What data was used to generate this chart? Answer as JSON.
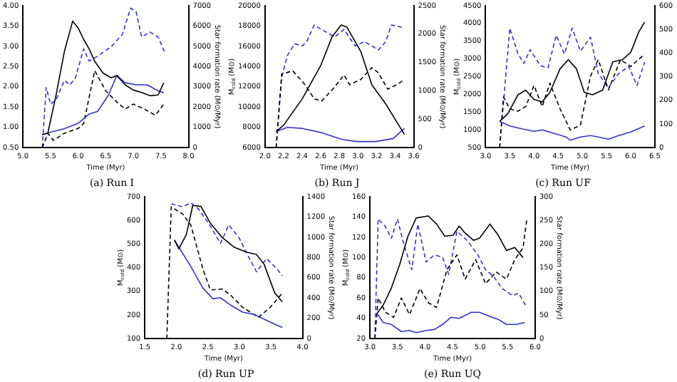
{
  "chart_data": [
    {
      "type": "line",
      "title": "(a) Run I",
      "xlabel": "Time (Myr)",
      "y2label": "Star formation rate (M⊙/Myr)",
      "marker": "none",
      "xlim": [
        5,
        8
      ],
      "xticks": [
        {
          "value": 5,
          "label": "5.0"
        },
        {
          "value": 5.5,
          "label": "5.5"
        },
        {
          "value": 6,
          "label": "6.0"
        },
        {
          "value": 6.5,
          "label": "6.5"
        },
        {
          "value": 7,
          "label": "7.0"
        },
        {
          "value": 7.5,
          "label": "7.5"
        },
        {
          "value": 8,
          "label": "8.0"
        }
      ],
      "ylim": [
        0.5,
        4
      ],
      "yticks": [
        {
          "value": 0.5,
          "label": "0.50"
        },
        {
          "value": 1,
          "label": "1.00"
        },
        {
          "value": 1.5,
          "label": "1.50"
        },
        {
          "value": 2,
          "label": "2.00"
        },
        {
          "value": 2.5,
          "label": "2.50"
        },
        {
          "value": 3,
          "label": "3.00"
        },
        {
          "value": 3.5,
          "label": "3.50"
        },
        {
          "value": 4,
          "label": "4.00"
        }
      ],
      "y2lim": [
        0,
        7000
      ],
      "y2ticks": [
        0,
        1000,
        2000,
        3000,
        4000,
        5000,
        6000,
        7000
      ],
      "series": [
        {
          "color": "#000000",
          "line_style": "solid",
          "x": [
            5.35,
            5.45,
            5.6,
            5.75,
            5.9,
            6.0,
            6.1,
            6.2,
            6.3,
            6.45,
            6.6,
            6.7,
            6.85,
            7.0,
            7.15,
            7.3,
            7.45,
            7.55
          ],
          "values": [
            0.82,
            0.86,
            1.8,
            2.87,
            3.62,
            3.45,
            3.17,
            2.93,
            2.63,
            2.34,
            2.22,
            2.28,
            2.05,
            1.92,
            1.86,
            1.78,
            1.8,
            2.1
          ]
        },
        {
          "color": "#3333cc",
          "line_style": "solid",
          "x": [
            5.35,
            5.5,
            5.75,
            6.0,
            6.2,
            6.35,
            6.55,
            6.7,
            6.85,
            7.05,
            7.25,
            7.45,
            7.55
          ],
          "values": [
            0.82,
            0.88,
            0.97,
            1.1,
            1.33,
            1.39,
            1.8,
            2.28,
            2.1,
            2.05,
            2.05,
            1.9,
            1.85
          ]
        },
        {
          "color": "#000000",
          "line_style": "dashed",
          "axis": "y2",
          "x": [
            5.35,
            5.45,
            5.55,
            5.75,
            6.0,
            6.1,
            6.2,
            6.3,
            6.5,
            6.7,
            6.85,
            7.0,
            7.2,
            7.4,
            7.55
          ],
          "values": [
            0,
            710,
            360,
            710,
            950,
            1190,
            2500,
            3800,
            2800,
            2250,
            1900,
            2150,
            1900,
            1600,
            2140
          ]
        },
        {
          "color": "#3333cc",
          "line_style": "dashed",
          "axis": "y2",
          "x": [
            5.35,
            5.42,
            5.5,
            5.6,
            5.75,
            5.85,
            5.95,
            6.1,
            6.2,
            6.35,
            6.6,
            6.8,
            6.95,
            7.05,
            7.15,
            7.3,
            7.45,
            7.58
          ],
          "values": [
            0,
            2970,
            2140,
            2370,
            3320,
            3090,
            3440,
            4870,
            4270,
            4510,
            4980,
            5580,
            6880,
            6700,
            5460,
            5700,
            5460,
            4630
          ]
        }
      ]
    },
    {
      "type": "line",
      "title": "(b) Run J",
      "xlabel": "Time (Myr)",
      "ylabel": "M$_{cold}$ (M⊙)",
      "y2label": "Star formation rate (M⊙/Myr)",
      "marker": "none",
      "xlim": [
        2,
        3.6
      ],
      "xticks": [
        {
          "value": 2,
          "label": "2.0"
        },
        {
          "value": 2.2,
          "label": "2.2"
        },
        {
          "value": 2.4,
          "label": "2.4"
        },
        {
          "value": 2.6,
          "label": "2.6"
        },
        {
          "value": 2.8,
          "label": "2.8"
        },
        {
          "value": 3,
          "label": "3.0"
        },
        {
          "value": 3.2,
          "label": "3.2"
        },
        {
          "value": 3.4,
          "label": "3.4"
        },
        {
          "value": 3.6,
          "label": "3.6"
        }
      ],
      "ylim": [
        6000,
        20000
      ],
      "yticks": [
        6000,
        8000,
        10000,
        12000,
        14000,
        16000,
        18000,
        20000
      ],
      "y2lim": [
        0,
        2500
      ],
      "y2ticks": [
        0,
        500,
        1000,
        1500,
        2000,
        2500
      ],
      "series": [
        {
          "color": "#000000",
          "line_style": "solid",
          "x": [
            2.12,
            2.2,
            2.4,
            2.6,
            2.72,
            2.82,
            2.88,
            3.03,
            3.15,
            3.3,
            3.42,
            3.5
          ],
          "values": [
            7600,
            8200,
            10800,
            14100,
            16900,
            18100,
            17900,
            15500,
            12200,
            10300,
            8500,
            7300
          ]
        },
        {
          "color": "#3333cc",
          "line_style": "solid",
          "x": [
            2.12,
            2.24,
            2.4,
            2.6,
            2.83,
            2.99,
            3.19,
            3.38,
            3.5
          ],
          "values": [
            7600,
            8000,
            7900,
            7500,
            6800,
            6600,
            6600,
            6900,
            7900
          ]
        },
        {
          "color": "#000000",
          "line_style": "dashed",
          "axis": "y2",
          "x": [
            2.12,
            2.18,
            2.3,
            2.43,
            2.53,
            2.61,
            2.75,
            2.85,
            2.91,
            3.03,
            3.15,
            3.22,
            3.32,
            3.42,
            3.5
          ],
          "values": [
            0,
            1300,
            1350,
            1110,
            860,
            820,
            1070,
            1280,
            1110,
            1200,
            1410,
            1320,
            1030,
            1110,
            1200
          ]
        },
        {
          "color": "#3333cc",
          "line_style": "dashed",
          "axis": "y2",
          "x": [
            2.12,
            2.18,
            2.24,
            2.32,
            2.4,
            2.45,
            2.53,
            2.61,
            2.75,
            2.85,
            2.97,
            3.07,
            3.22,
            3.3,
            3.36,
            3.5
          ],
          "values": [
            0,
            1240,
            1620,
            1830,
            1790,
            1870,
            2160,
            2080,
            1950,
            2080,
            1790,
            1870,
            1720,
            1870,
            2160,
            2110
          ]
        }
      ]
    },
    {
      "type": "line",
      "title": "(c) Run UF",
      "xlabel": "Time (Myr)",
      "ylabel": "M$_{cold}$ (M⊙)",
      "marker": "none",
      "xlim": [
        3,
        6.5
      ],
      "xticks": [
        {
          "value": 3,
          "label": "3.0"
        },
        {
          "value": 3.5,
          "label": "3.5"
        },
        {
          "value": 4,
          "label": "4.0"
        },
        {
          "value": 4.5,
          "label": "4.5"
        },
        {
          "value": 5,
          "label": "5.0"
        },
        {
          "value": 5.5,
          "label": "5.5"
        },
        {
          "value": 6,
          "label": "6.0"
        },
        {
          "value": 6.5,
          "label": "6.5"
        }
      ],
      "ylim": [
        500,
        4500
      ],
      "yticks": [
        500,
        1000,
        1500,
        2000,
        2500,
        3000,
        3500,
        4000,
        4500
      ],
      "y2lim": [
        0,
        600
      ],
      "y2ticks": [
        0,
        100,
        200,
        300,
        400,
        500,
        600
      ],
      "series": [
        {
          "color": "#000000",
          "line_style": "solid",
          "x": [
            3.29,
            3.46,
            3.67,
            3.83,
            4.0,
            4.17,
            4.33,
            4.54,
            4.71,
            4.88,
            5.04,
            5.21,
            5.42,
            5.63,
            5.83,
            6.0,
            6.17,
            6.29
          ],
          "values": [
            1240,
            1460,
            1990,
            2120,
            1860,
            1790,
            2060,
            2720,
            2980,
            2720,
            2060,
            1990,
            2120,
            2920,
            2980,
            3180,
            3770,
            4040
          ]
        },
        {
          "color": "#3333cc",
          "line_style": "solid",
          "x": [
            3.29,
            3.5,
            3.75,
            4.0,
            4.17,
            4.42,
            4.67,
            4.75,
            4.96,
            5.17,
            5.33,
            5.54,
            5.75,
            6.0,
            6.29
          ],
          "values": [
            1240,
            1110,
            1030,
            960,
            1000,
            900,
            800,
            710,
            800,
            840,
            800,
            740,
            840,
            940,
            1110
          ]
        },
        {
          "color": "#000000",
          "line_style": "dashed",
          "axis": "y2",
          "x": [
            3.29,
            3.37,
            3.5,
            3.67,
            3.83,
            4.0,
            4.17,
            4.33,
            4.54,
            4.75,
            4.96,
            5.17,
            5.33,
            5.54,
            5.79,
            6.0,
            6.29
          ],
          "values": [
            0,
            214,
            164,
            154,
            174,
            263,
            174,
            273,
            164,
            75,
            95,
            303,
            372,
            244,
            372,
            343,
            396
          ]
        },
        {
          "color": "#3333cc",
          "line_style": "dashed",
          "axis": "y2",
          "x": [
            3.29,
            3.5,
            3.67,
            3.79,
            3.92,
            4.13,
            4.29,
            4.46,
            4.63,
            4.79,
            4.96,
            5.17,
            5.33,
            5.54,
            5.75,
            5.96,
            6.13,
            6.29
          ],
          "values": [
            0,
            505,
            396,
            356,
            414,
            347,
            337,
            475,
            396,
            505,
            408,
            467,
            313,
            253,
            313,
            343,
            263,
            362
          ]
        }
      ]
    },
    {
      "type": "line",
      "title": "(d) Run UP",
      "xlabel": "Time (Myr)",
      "ylabel": "M$_{cold}$ (M⊙)",
      "y2label": "Star formation rate (M⊙/Myr)",
      "marker": "none",
      "xlim": [
        1.5,
        4
      ],
      "xticks": [
        {
          "value": 1.5,
          "label": "1.5"
        },
        {
          "value": 2,
          "label": "2.0"
        },
        {
          "value": 2.5,
          "label": "2.5"
        },
        {
          "value": 3,
          "label": "3.0"
        },
        {
          "value": 3.5,
          "label": "3.5"
        },
        {
          "value": 4,
          "label": "4.0"
        }
      ],
      "ylim": [
        100,
        700
      ],
      "yticks": [
        100,
        200,
        300,
        400,
        500,
        600,
        700
      ],
      "y2lim": [
        0,
        1400
      ],
      "y2ticks": [
        0,
        200,
        400,
        600,
        800,
        1000,
        1200,
        1400
      ],
      "series": [
        {
          "color": "#000000",
          "line_style": "solid",
          "x": [
            1.97,
            2.04,
            2.16,
            2.26,
            2.39,
            2.54,
            2.73,
            2.92,
            3.11,
            3.27,
            3.39,
            3.56,
            3.68
          ],
          "values": [
            517,
            480,
            540,
            663,
            659,
            588,
            527,
            486,
            466,
            456,
            415,
            293,
            256
          ]
        },
        {
          "color": "#3333cc",
          "line_style": "solid",
          "x": [
            1.97,
            2.04,
            2.23,
            2.42,
            2.58,
            2.7,
            2.86,
            3.05,
            3.24,
            3.4,
            3.56,
            3.68
          ],
          "values": [
            517,
            487,
            405,
            314,
            269,
            273,
            242,
            212,
            202,
            181,
            161,
            147
          ]
        },
        {
          "color": "#000000",
          "line_style": "dashed",
          "axis": "y2",
          "x": [
            1.85,
            1.92,
            2.1,
            2.23,
            2.42,
            2.54,
            2.73,
            2.86,
            3.05,
            3.3,
            3.49,
            3.68
          ],
          "values": [
            0,
            1300,
            1230,
            1120,
            690,
            480,
            490,
            430,
            310,
            210,
            310,
            450
          ]
        },
        {
          "color": "#3333cc",
          "line_style": "dashed",
          "axis": "y2",
          "x": [
            1.92,
            2.1,
            2.23,
            2.35,
            2.51,
            2.7,
            2.83,
            2.99,
            3.11,
            3.27,
            3.43,
            3.59,
            3.68
          ],
          "values": [
            1330,
            1300,
            1340,
            1280,
            1140,
            940,
            1120,
            1000,
            850,
            660,
            790,
            690,
            620
          ]
        }
      ]
    },
    {
      "type": "line",
      "title": "(e) Run UQ",
      "xlabel": "Time (Myr)",
      "ylabel": "M$_{cold}$ (M⊙)",
      "y2label": "Star formation rate (M⊙/Myr)",
      "marker": "none",
      "xlim": [
        3,
        6
      ],
      "xticks": [
        {
          "value": 3,
          "label": "3.0"
        },
        {
          "value": 3.5,
          "label": "3.5"
        },
        {
          "value": 4,
          "label": "4.0"
        },
        {
          "value": 4.5,
          "label": "4.5"
        },
        {
          "value": 5,
          "label": "5.0"
        },
        {
          "value": 5.5,
          "label": "5.5"
        },
        {
          "value": 6,
          "label": "6.0"
        }
      ],
      "ylim": [
        20,
        160
      ],
      "yticks": [
        20,
        40,
        60,
        80,
        100,
        120,
        140,
        160
      ],
      "y2lim": [
        0,
        300
      ],
      "y2ticks": [
        0,
        50,
        100,
        150,
        200,
        250,
        300
      ],
      "series": [
        {
          "color": "#000000",
          "line_style": "solid",
          "x": [
            3.13,
            3.24,
            3.39,
            3.54,
            3.69,
            3.84,
            4.06,
            4.21,
            4.36,
            4.51,
            4.62,
            4.73,
            4.88,
            4.99,
            5.18,
            5.33,
            5.48,
            5.63,
            5.78
          ],
          "values": [
            45,
            53,
            70,
            93,
            121,
            139,
            141,
            133,
            121,
            122,
            131,
            124,
            117,
            119,
            133,
            122,
            107,
            110,
            100
          ]
        },
        {
          "color": "#3333cc",
          "line_style": "solid",
          "x": [
            3.13,
            3.24,
            3.39,
            3.57,
            3.72,
            3.84,
            4.02,
            4.17,
            4.32,
            4.47,
            4.62,
            4.84,
            4.99,
            5.18,
            5.33,
            5.48,
            5.66,
            5.81
          ],
          "values": [
            45,
            36,
            34,
            27,
            28,
            26,
            28,
            29,
            34,
            41,
            40,
            46,
            46,
            42,
            39,
            34,
            34,
            36
          ]
        },
        {
          "color": "#000000",
          "line_style": "dashed",
          "axis": "y2",
          "x": [
            3.09,
            3.15,
            3.28,
            3.43,
            3.57,
            3.72,
            3.91,
            4.06,
            4.21,
            4.4,
            4.58,
            4.73,
            4.92,
            5.1,
            5.29,
            5.48,
            5.63,
            5.78,
            5.85
          ],
          "values": [
            0,
            86,
            56,
            45,
            86,
            51,
            106,
            76,
            66,
            146,
            177,
            126,
            167,
            116,
            141,
            126,
            167,
            192,
            253
          ]
        },
        {
          "color": "#3333cc",
          "line_style": "dashed",
          "axis": "y2",
          "x": [
            3.09,
            3.15,
            3.28,
            3.39,
            3.5,
            3.61,
            3.76,
            3.87,
            4.02,
            4.17,
            4.32,
            4.43,
            4.58,
            4.77,
            4.96,
            5.1,
            5.25,
            5.4,
            5.59,
            5.7,
            5.85
          ],
          "values": [
            0,
            253,
            237,
            212,
            253,
            202,
            146,
            242,
            162,
            177,
            172,
            136,
            227,
            207,
            177,
            146,
            131,
            106,
            91,
            96,
            66
          ]
        }
      ]
    }
  ]
}
